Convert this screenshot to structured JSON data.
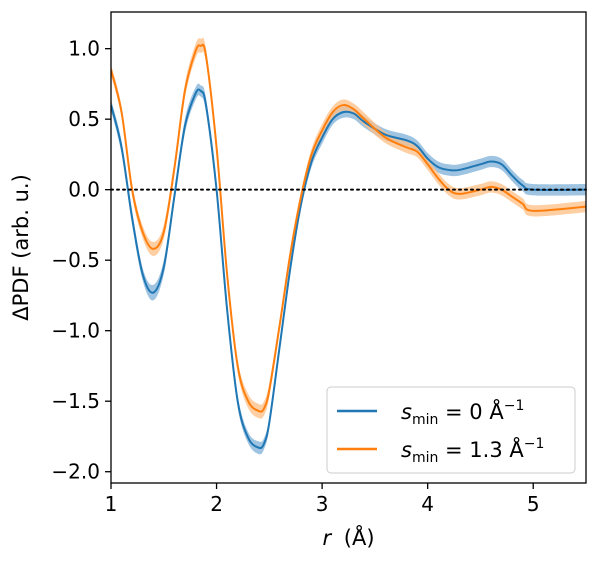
{
  "chart_data": {
    "type": "line",
    "title": "",
    "xlabel": "r (Å)",
    "xlabel_italic": "r",
    "xlabel_unit": "(Å)",
    "ylabel": "ΔPDF (arb. u.)",
    "xlim": [
      1.0,
      5.5
    ],
    "ylim": [
      -2.08,
      1.26
    ],
    "xticks": [
      1,
      2,
      3,
      4,
      5
    ],
    "xtick_labels": [
      "1",
      "2",
      "3",
      "4",
      "5"
    ],
    "yticks": [
      -2.0,
      -1.5,
      -1.0,
      -0.5,
      0.0,
      0.5,
      1.0
    ],
    "ytick_labels": [
      "−2.0",
      "−1.5",
      "−1.0",
      "−0.5",
      "0.0",
      "0.5",
      "1.0"
    ],
    "grid": false,
    "reference_line": {
      "y": 0.0,
      "style": "dotted",
      "color": "#000000"
    },
    "legend": {
      "placement": "lower-right",
      "entries": [
        {
          "symbol": "s",
          "subscript": "min",
          "text": " = 0 Å",
          "sup": "−1"
        },
        {
          "symbol": "s",
          "subscript": "min",
          "text": " = 1.3 Å",
          "sup": "−1"
        }
      ]
    },
    "series": [
      {
        "color": "#1f77b4",
        "band_color": "#7fb0d8",
        "band_half_width": [
          0.04,
          0.045,
          0.05,
          0.045,
          0.055,
          0.05,
          0.045,
          0.05,
          0.045,
          0.04,
          0.05,
          0.05,
          0.05,
          0.045,
          0.04,
          0.045,
          0.04,
          0.04,
          0.04,
          0.045,
          0.045,
          0.04,
          0.045,
          0.04,
          0.04,
          0.04,
          0.04,
          0.04,
          0.04,
          0.04,
          0.04,
          0.04,
          0.04,
          0.04,
          0.04,
          0.04,
          0.04,
          0.04,
          0.04,
          0.04,
          0.04
        ],
        "x": [
          1.0,
          1.1,
          1.2,
          1.3,
          1.4,
          1.5,
          1.6,
          1.7,
          1.8,
          1.85,
          1.9,
          2.0,
          2.1,
          2.2,
          2.3,
          2.4,
          2.45,
          2.5,
          2.6,
          2.7,
          2.8,
          2.9,
          3.0,
          3.1,
          3.2,
          3.3,
          3.4,
          3.6,
          3.8,
          3.9,
          4.0,
          4.1,
          4.2,
          4.3,
          4.5,
          4.6,
          4.7,
          4.8,
          4.9,
          5.0,
          5.5
        ],
        "values": [
          0.6,
          0.3,
          -0.2,
          -0.6,
          -0.73,
          -0.55,
          -0.05,
          0.45,
          0.68,
          0.7,
          0.6,
          0.0,
          -0.85,
          -1.5,
          -1.76,
          -1.83,
          -1.8,
          -1.65,
          -1.1,
          -0.55,
          -0.1,
          0.2,
          0.37,
          0.5,
          0.55,
          0.54,
          0.48,
          0.39,
          0.35,
          0.31,
          0.22,
          0.16,
          0.14,
          0.14,
          0.18,
          0.2,
          0.18,
          0.1,
          0.03,
          0.0,
          0.0
        ]
      },
      {
        "color": "#ff7f0e",
        "band_color": "#ffbf86",
        "band_half_width": [
          0.04,
          0.04,
          0.045,
          0.045,
          0.05,
          0.05,
          0.05,
          0.05,
          0.05,
          0.05,
          0.05,
          0.05,
          0.05,
          0.045,
          0.05,
          0.05,
          0.05,
          0.05,
          0.04,
          0.04,
          0.04,
          0.04,
          0.045,
          0.04,
          0.04,
          0.04,
          0.045,
          0.04,
          0.04,
          0.04,
          0.04,
          0.04,
          0.04,
          0.04,
          0.04,
          0.04,
          0.04,
          0.04,
          0.04,
          0.04,
          0.04
        ],
        "x": [
          1.0,
          1.1,
          1.2,
          1.3,
          1.4,
          1.5,
          1.6,
          1.7,
          1.8,
          1.85,
          1.9,
          2.0,
          2.1,
          2.2,
          2.3,
          2.4,
          2.45,
          2.5,
          2.6,
          2.7,
          2.8,
          2.9,
          3.0,
          3.1,
          3.2,
          3.3,
          3.4,
          3.6,
          3.8,
          3.9,
          4.0,
          4.1,
          4.2,
          4.3,
          4.5,
          4.6,
          4.7,
          4.8,
          4.9,
          5.0,
          5.5
        ],
        "values": [
          0.85,
          0.55,
          0.0,
          -0.3,
          -0.42,
          -0.3,
          0.15,
          0.7,
          0.98,
          1.02,
          0.95,
          0.3,
          -0.6,
          -1.25,
          -1.5,
          -1.57,
          -1.55,
          -1.42,
          -0.95,
          -0.45,
          -0.05,
          0.25,
          0.42,
          0.55,
          0.6,
          0.57,
          0.5,
          0.37,
          0.3,
          0.27,
          0.18,
          0.08,
          0.0,
          -0.03,
          0.0,
          0.02,
          0.0,
          -0.05,
          -0.1,
          -0.15,
          -0.12
        ]
      }
    ]
  }
}
